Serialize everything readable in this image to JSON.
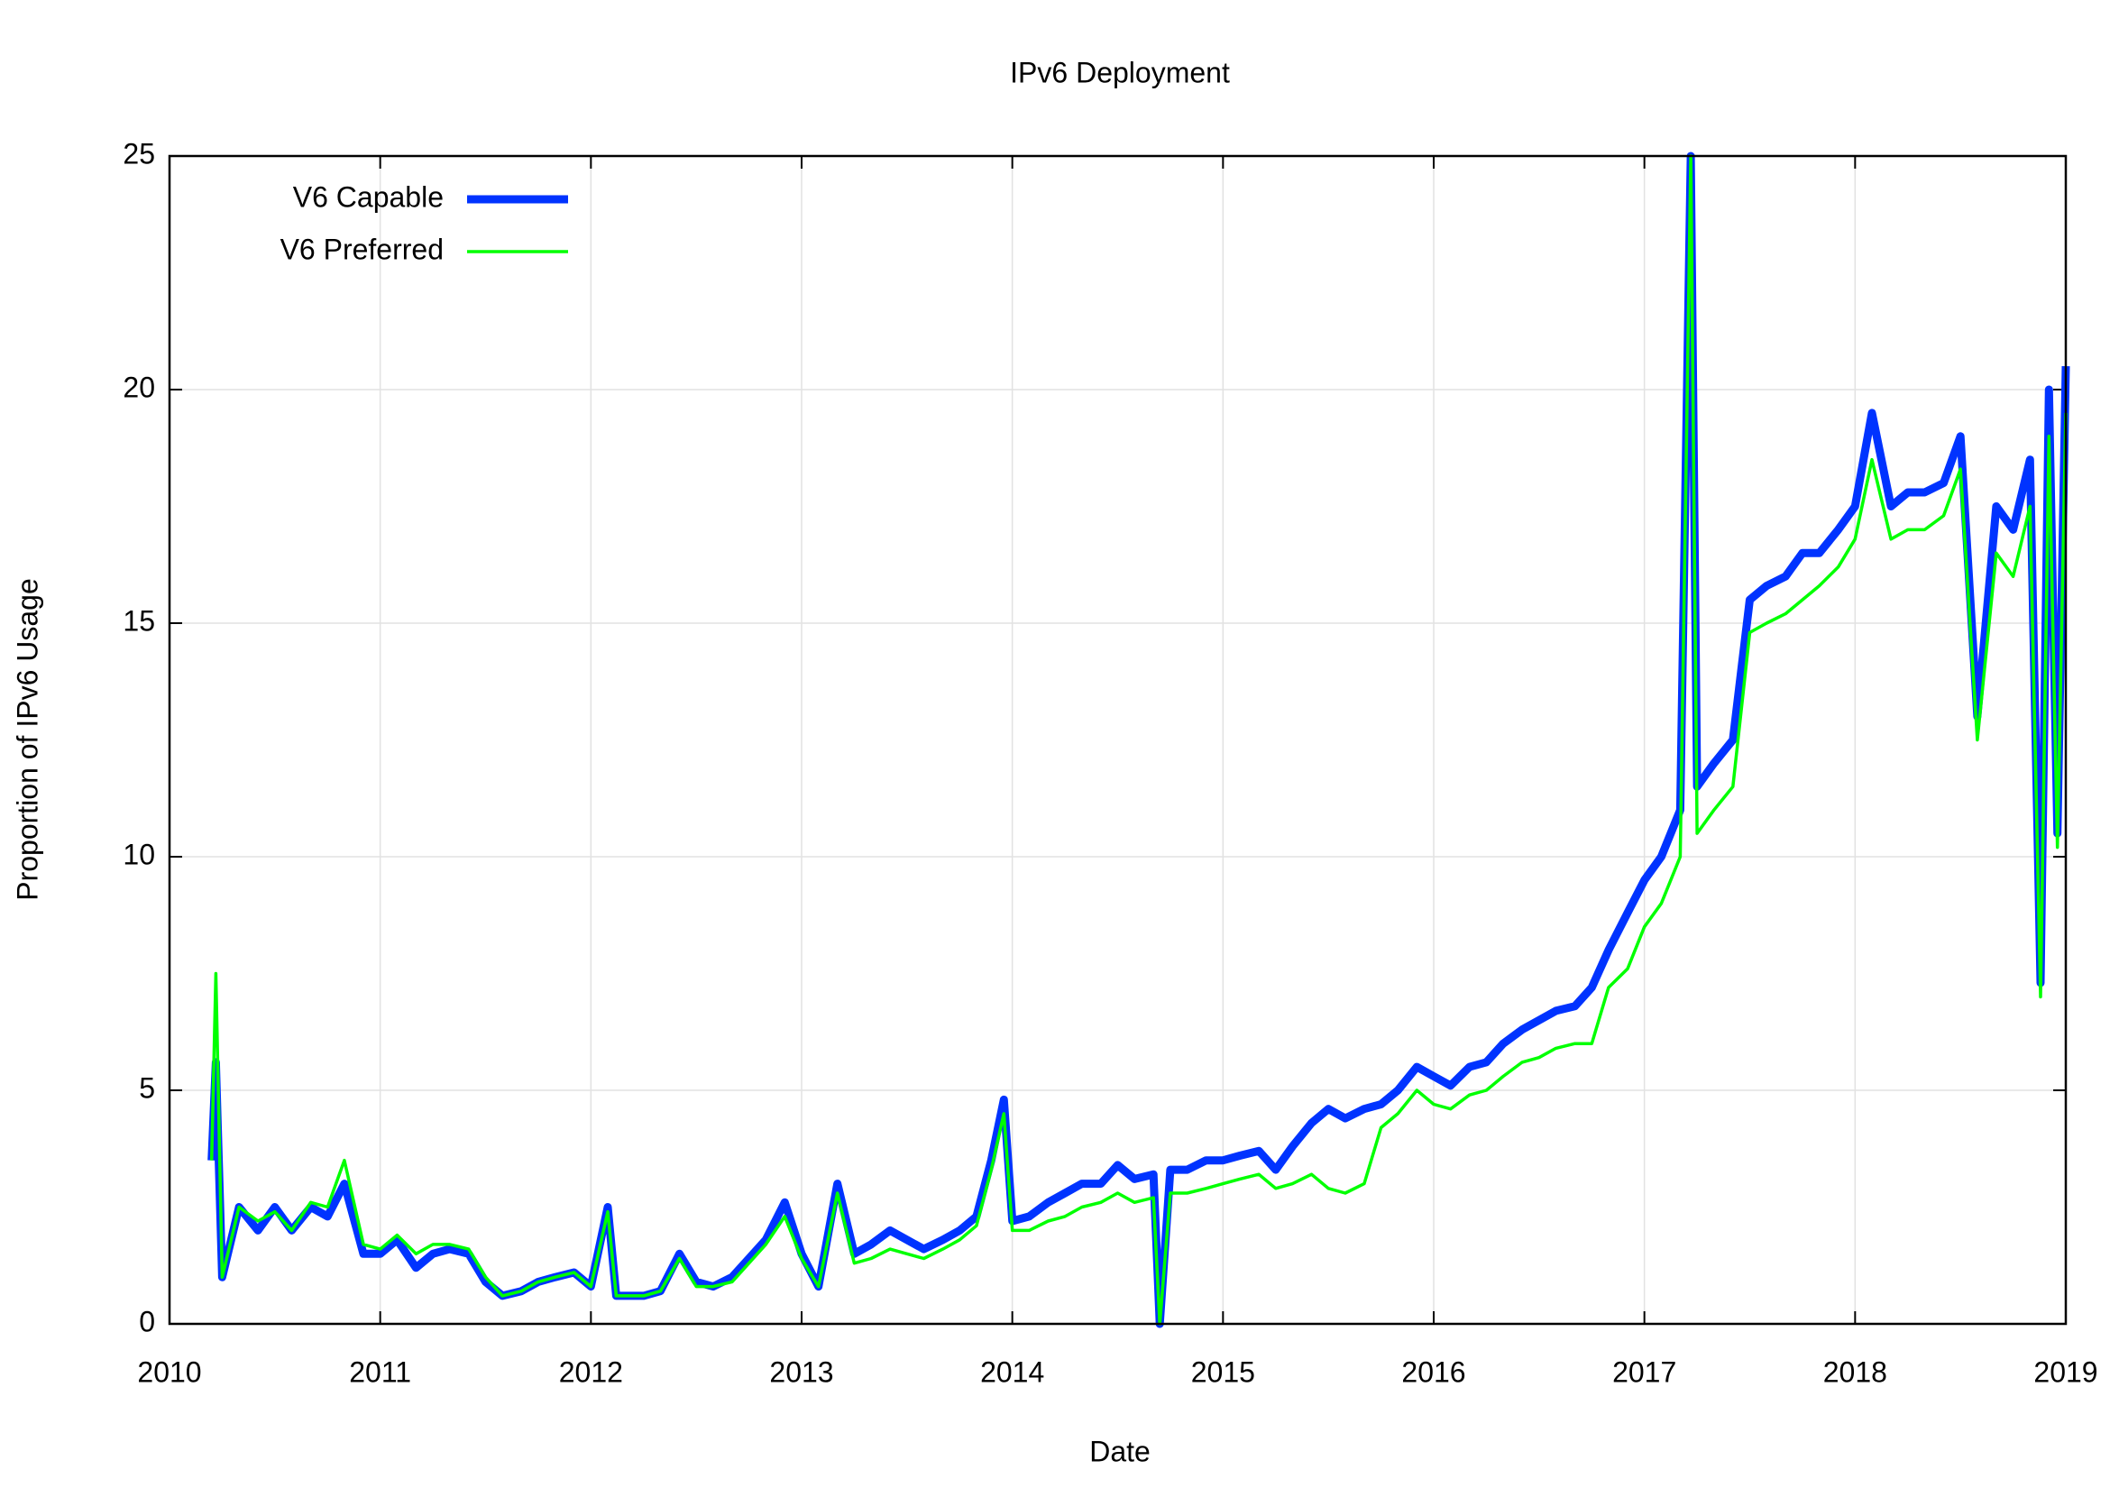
{
  "chart_data": {
    "type": "line",
    "title": "IPv6 Deployment",
    "x_label": "Date",
    "y_label": "Proportion of IPv6 Usage",
    "x": [
      2010.2,
      2010.22,
      2010.25,
      2010.33,
      2010.42,
      2010.5,
      2010.58,
      2010.67,
      2010.75,
      2010.83,
      2010.92,
      2011.0,
      2011.08,
      2011.17,
      2011.25,
      2011.33,
      2011.42,
      2011.5,
      2011.58,
      2011.67,
      2011.75,
      2011.83,
      2011.92,
      2012.0,
      2012.08,
      2012.12,
      2012.25,
      2012.33,
      2012.42,
      2012.5,
      2012.58,
      2012.67,
      2012.75,
      2012.83,
      2012.92,
      2013.0,
      2013.08,
      2013.17,
      2013.25,
      2013.33,
      2013.42,
      2013.5,
      2013.58,
      2013.67,
      2013.75,
      2013.83,
      2013.9,
      2013.96,
      2014.0,
      2014.08,
      2014.17,
      2014.25,
      2014.33,
      2014.42,
      2014.5,
      2014.58,
      2014.67,
      2014.7,
      2014.75,
      2014.83,
      2014.92,
      2015.0,
      2015.08,
      2015.17,
      2015.25,
      2015.33,
      2015.42,
      2015.5,
      2015.58,
      2015.67,
      2015.75,
      2015.83,
      2015.92,
      2016.0,
      2016.08,
      2016.17,
      2016.25,
      2016.33,
      2016.42,
      2016.5,
      2016.58,
      2016.67,
      2016.75,
      2016.83,
      2016.92,
      2017.0,
      2017.08,
      2017.17,
      2017.22,
      2017.25,
      2017.33,
      2017.42,
      2017.5,
      2017.58,
      2017.67,
      2017.75,
      2017.83,
      2017.92,
      2018.0,
      2018.08,
      2018.17,
      2018.25,
      2018.33,
      2018.42,
      2018.5,
      2018.58,
      2018.67,
      2018.75,
      2018.83,
      2018.88,
      2018.92,
      2018.96,
      2019.0
    ],
    "series": [
      {
        "name": "V6 Capable",
        "color": "#0033ff",
        "values": [
          3.5,
          5.6,
          1.0,
          2.5,
          2.0,
          2.5,
          2.0,
          2.5,
          2.3,
          3.0,
          1.5,
          1.5,
          1.8,
          1.2,
          1.5,
          1.6,
          1.5,
          0.9,
          0.6,
          0.7,
          0.9,
          1.0,
          1.1,
          0.8,
          2.5,
          0.6,
          0.6,
          0.7,
          1.5,
          0.9,
          0.8,
          1.0,
          1.4,
          1.8,
          2.6,
          1.5,
          0.8,
          3.0,
          1.5,
          1.7,
          2.0,
          1.8,
          1.6,
          1.8,
          2.0,
          2.3,
          3.5,
          4.8,
          2.2,
          2.3,
          2.6,
          2.8,
          3.0,
          3.0,
          3.4,
          3.1,
          3.2,
          0,
          3.3,
          3.3,
          3.5,
          3.5,
          3.6,
          3.7,
          3.3,
          3.8,
          4.3,
          4.6,
          4.4,
          4.6,
          4.7,
          5.0,
          5.5,
          5.3,
          5.1,
          5.5,
          5.6,
          6.0,
          6.3,
          6.5,
          6.7,
          6.8,
          7.2,
          8.0,
          8.8,
          9.5,
          10.0,
          11.0,
          25,
          11.5,
          12.0,
          12.5,
          15.5,
          15.8,
          16.0,
          16.5,
          16.5,
          17.0,
          17.5,
          19.5,
          17.5,
          17.8,
          17.8,
          18.0,
          19.0,
          13.0,
          17.5,
          17.0,
          18.5,
          7.3,
          20.0,
          10.5,
          20.5
        ]
      },
      {
        "name": "V6 Preferred",
        "color": "#00ff00",
        "values": [
          3.5,
          7.5,
          1.0,
          2.5,
          2.2,
          2.4,
          2.0,
          2.6,
          2.5,
          3.5,
          1.7,
          1.6,
          1.9,
          1.5,
          1.7,
          1.7,
          1.6,
          1.0,
          0.6,
          0.7,
          0.9,
          1.0,
          1.1,
          0.8,
          2.4,
          0.6,
          0.6,
          0.7,
          1.4,
          0.8,
          0.8,
          0.9,
          1.3,
          1.7,
          2.3,
          1.4,
          0.8,
          2.8,
          1.3,
          1.4,
          1.6,
          1.5,
          1.4,
          1.6,
          1.8,
          2.1,
          3.3,
          4.5,
          2.0,
          2.0,
          2.2,
          2.3,
          2.5,
          2.6,
          2.8,
          2.6,
          2.7,
          0,
          2.8,
          2.8,
          2.9,
          3.0,
          3.1,
          3.2,
          2.9,
          3.0,
          3.2,
          2.9,
          2.8,
          3.0,
          4.2,
          4.5,
          5.0,
          4.7,
          4.6,
          4.9,
          5.0,
          5.3,
          5.6,
          5.7,
          5.9,
          6.0,
          6.0,
          7.2,
          7.6,
          8.5,
          9.0,
          10.0,
          25,
          10.5,
          11.0,
          11.5,
          14.8,
          15.0,
          15.2,
          15.5,
          15.8,
          16.2,
          16.8,
          18.5,
          16.8,
          17.0,
          17.0,
          17.3,
          18.3,
          12.5,
          16.5,
          16.0,
          17.5,
          7.0,
          19.0,
          10.2,
          19.5
        ]
      }
    ],
    "xlim": [
      2010,
      2019
    ],
    "xticks": [
      2010,
      2011,
      2012,
      2013,
      2014,
      2015,
      2016,
      2017,
      2018,
      2019
    ],
    "ylim": [
      0,
      25
    ],
    "yticks": [
      0,
      5,
      10,
      15,
      20,
      25
    ],
    "grid": true,
    "legend": "upper left"
  }
}
